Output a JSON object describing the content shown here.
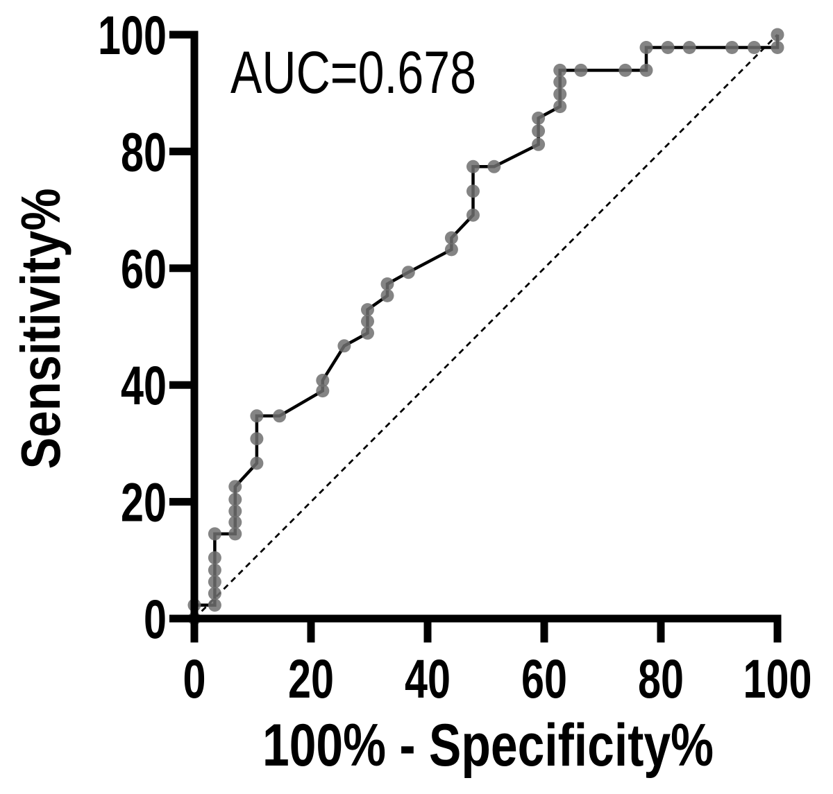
{
  "figure": {
    "annotation": "AUC=0.678",
    "auc_value": 0.678,
    "background_color": "#ffffff"
  },
  "chart_data": {
    "type": "line",
    "subtype": "roc-curve",
    "title": "",
    "annotation": "AUC=0.678",
    "xlabel": "100% - Specificity%",
    "ylabel": "Sensitivity%",
    "xlim": [
      0,
      100
    ],
    "ylim": [
      0,
      100
    ],
    "x_ticks": [
      "0",
      "20",
      "40",
      "60",
      "80",
      "100"
    ],
    "y_ticks": [
      "0",
      "20",
      "40",
      "60",
      "80",
      "100"
    ],
    "grid": false,
    "legend": null,
    "axis_color": "#000000",
    "series": [
      {
        "name": "ROC curve",
        "style": "solid",
        "line_color": "#000000",
        "line_width": 4.5,
        "marker": "circle",
        "marker_color": "#6f6f6f",
        "marker_opacity": 0.85,
        "marker_radius": 9.5,
        "points": [
          [
            0,
            0
          ],
          [
            0,
            2.3
          ],
          [
            3.5,
            2.3
          ],
          [
            3.5,
            4.3
          ],
          [
            3.5,
            6.3
          ],
          [
            3.5,
            8.3
          ],
          [
            3.5,
            10.4
          ],
          [
            3.5,
            14.5
          ],
          [
            7,
            14.5
          ],
          [
            7,
            16.5
          ],
          [
            7,
            18.4
          ],
          [
            7,
            20.4
          ],
          [
            7,
            22.6
          ],
          [
            10.7,
            26.6
          ],
          [
            10.7,
            30.8
          ],
          [
            10.7,
            34.7
          ],
          [
            14.6,
            34.7
          ],
          [
            22,
            39
          ],
          [
            22,
            40.8
          ],
          [
            25.7,
            46.7
          ],
          [
            29.7,
            48.9
          ],
          [
            29.7,
            50.9
          ],
          [
            29.7,
            52.9
          ],
          [
            33.1,
            55.3
          ],
          [
            33.1,
            57.3
          ],
          [
            36.7,
            59.3
          ],
          [
            44.1,
            63.2
          ],
          [
            44.1,
            65.2
          ],
          [
            47.8,
            69.1
          ],
          [
            47.8,
            73.2
          ],
          [
            47.8,
            77.4
          ],
          [
            51.4,
            77.4
          ],
          [
            59,
            81.2
          ],
          [
            59,
            83.5
          ],
          [
            59,
            85.7
          ],
          [
            62.7,
            87.7
          ],
          [
            62.7,
            89.8
          ],
          [
            62.7,
            91.9
          ],
          [
            62.7,
            93.9
          ],
          [
            66.3,
            93.9
          ],
          [
            73.9,
            93.9
          ],
          [
            77.5,
            93.9
          ],
          [
            77.5,
            97.8
          ],
          [
            81.2,
            97.8
          ],
          [
            84.9,
            97.8
          ],
          [
            92.2,
            97.8
          ],
          [
            96,
            97.8
          ],
          [
            100,
            97.8
          ],
          [
            100,
            100
          ]
        ]
      },
      {
        "name": "Identity line",
        "style": "dashed",
        "line_color": "#000000",
        "line_width": 2.8,
        "dash_pattern": "8.5 6.5",
        "marker": "none",
        "points": [
          [
            0,
            0
          ],
          [
            100,
            100
          ]
        ]
      }
    ]
  }
}
